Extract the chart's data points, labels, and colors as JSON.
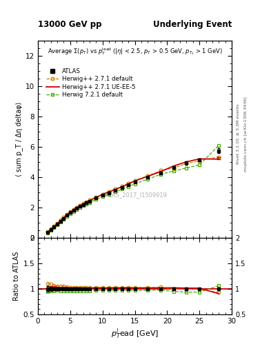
{
  "title_left": "13000 GeV pp",
  "title_right": "Underlying Event",
  "plot_label": "ATLAS_2017_I1509919",
  "right_label_top": "Rivet 3.1.10, ≥ 3.3M events",
  "right_label_bottom": "mcplots.cern.ch [arXiv:1306.3436]",
  "xlabel": "p_T^{l}ead [GeV]",
  "ylabel_main": "⟨ sum p_T / Δη deltaφ⟩",
  "ylabel_ratio": "Ratio to ATLAS",
  "xlim": [
    0,
    30
  ],
  "ylim_main": [
    0,
    13
  ],
  "ylim_ratio": [
    0.5,
    2.0
  ],
  "yticks_main": [
    0,
    2,
    4,
    6,
    8,
    10,
    12
  ],
  "atlas_x": [
    1.5,
    2.0,
    2.5,
    3.0,
    3.5,
    4.0,
    4.5,
    5.0,
    5.5,
    6.0,
    6.5,
    7.0,
    7.5,
    8.0,
    9.0,
    10.0,
    11.0,
    12.0,
    13.0,
    14.0,
    15.0,
    17.0,
    19.0,
    21.0,
    23.0,
    25.0,
    28.0
  ],
  "atlas_y": [
    0.38,
    0.56,
    0.73,
    0.93,
    1.12,
    1.31,
    1.5,
    1.68,
    1.83,
    1.97,
    2.1,
    2.22,
    2.34,
    2.44,
    2.63,
    2.82,
    2.99,
    3.15,
    3.31,
    3.5,
    3.7,
    4.0,
    4.3,
    4.65,
    4.95,
    5.15,
    5.75
  ],
  "atlas_yerr": [
    0.02,
    0.02,
    0.02,
    0.02,
    0.02,
    0.02,
    0.02,
    0.02,
    0.02,
    0.02,
    0.03,
    0.03,
    0.03,
    0.03,
    0.04,
    0.04,
    0.05,
    0.05,
    0.06,
    0.06,
    0.06,
    0.07,
    0.08,
    0.09,
    0.1,
    0.1,
    0.15
  ],
  "hw271_x": [
    1.5,
    2.0,
    2.5,
    3.0,
    3.5,
    4.0,
    4.5,
    5.0,
    5.5,
    6.0,
    6.5,
    7.0,
    7.5,
    8.0,
    9.0,
    10.0,
    11.0,
    12.0,
    13.0,
    14.0,
    15.0,
    17.0,
    19.0,
    21.0,
    23.0,
    25.0,
    28.0
  ],
  "hw271_y": [
    0.42,
    0.61,
    0.78,
    0.98,
    1.18,
    1.38,
    1.56,
    1.73,
    1.89,
    2.03,
    2.16,
    2.28,
    2.4,
    2.5,
    2.7,
    2.9,
    3.07,
    3.24,
    3.41,
    3.6,
    3.8,
    4.1,
    4.45,
    4.62,
    4.9,
    5.1,
    5.35
  ],
  "hw271ue_x": [
    1.5,
    2.0,
    2.5,
    3.0,
    3.5,
    4.0,
    4.5,
    5.0,
    5.5,
    6.0,
    6.5,
    7.0,
    7.5,
    8.0,
    9.0,
    10.0,
    11.0,
    12.0,
    13.0,
    14.0,
    15.0,
    17.0,
    19.0,
    21.0,
    23.0,
    25.0,
    28.0
  ],
  "hw271ue_y": [
    0.4,
    0.58,
    0.76,
    0.96,
    1.15,
    1.35,
    1.54,
    1.71,
    1.87,
    2.01,
    2.14,
    2.26,
    2.38,
    2.48,
    2.68,
    2.87,
    3.04,
    3.21,
    3.38,
    3.57,
    3.77,
    4.07,
    4.38,
    4.75,
    5.02,
    5.22,
    5.2
  ],
  "hw721_x": [
    1.5,
    2.0,
    2.5,
    3.0,
    3.5,
    4.0,
    4.5,
    5.0,
    5.5,
    6.0,
    6.5,
    7.0,
    7.5,
    8.0,
    9.0,
    10.0,
    11.0,
    12.0,
    13.0,
    14.0,
    15.0,
    17.0,
    19.0,
    21.0,
    23.0,
    25.0,
    28.0
  ],
  "hw721_y": [
    0.36,
    0.54,
    0.7,
    0.9,
    1.08,
    1.26,
    1.44,
    1.6,
    1.75,
    1.89,
    2.02,
    2.14,
    2.25,
    2.35,
    2.55,
    2.73,
    2.9,
    3.06,
    3.22,
    3.4,
    3.58,
    3.88,
    4.2,
    4.42,
    4.62,
    4.82,
    6.1
  ],
  "color_atlas": "#000000",
  "color_hw271": "#cc8800",
  "color_hw271ue": "#cc0000",
  "color_hw721": "#44aa00",
  "bg_color": "#ffffff"
}
